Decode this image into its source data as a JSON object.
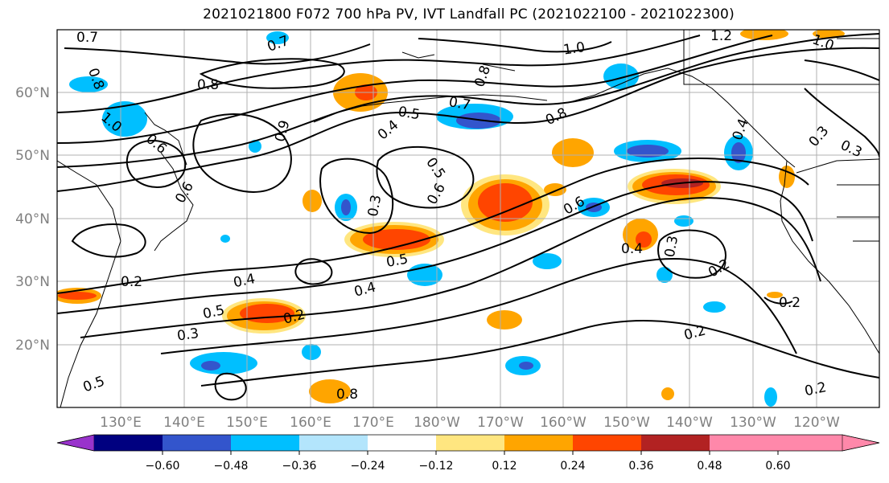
{
  "title": "2021021800 F072 700 hPa PV, IVT Landfall PC (2021022100 - 2021022300)",
  "map": {
    "latitude_labels": [
      "60°N",
      "50°N",
      "40°N",
      "30°N",
      "20°N"
    ],
    "longitude_labels": [
      "130°E",
      "140°E",
      "150°E",
      "160°E",
      "170°E",
      "180°W",
      "170°W",
      "160°W",
      "150°W",
      "140°W",
      "130°W",
      "120°W"
    ],
    "contour_labels": [
      "0.7",
      "0.7",
      "1.0",
      "1.2",
      "1.0",
      "0.8",
      "0.8",
      "0.8",
      "1.0",
      "0.6",
      "0.9",
      "0.7",
      "0.5",
      "0.4",
      "0.8",
      "0.6",
      "0.5",
      "0.6",
      "0.3",
      "0.6",
      "0.4",
      "0.3",
      "0.3",
      "0.5",
      "0.4",
      "0.4",
      "0.5",
      "0.2",
      "0.3",
      "0.2",
      "0.4",
      "0.3",
      "0.2",
      "0.2",
      "0.2",
      "0.2",
      "0.5",
      "0.8"
    ]
  },
  "colorbar": {
    "tick_labels": [
      "−0.60",
      "−0.48",
      "−0.36",
      "−0.24",
      "−0.12",
      "0.12",
      "0.24",
      "0.36",
      "0.48",
      "0.60"
    ],
    "colors": [
      "#9933cc",
      "#000080",
      "#3355cc",
      "#00bfff",
      "#b3e5fc",
      "#ffffff",
      "#ffe680",
      "#ffa500",
      "#ff4500",
      "#b22222",
      "#ff88aa",
      "#ff88aa"
    ]
  }
}
